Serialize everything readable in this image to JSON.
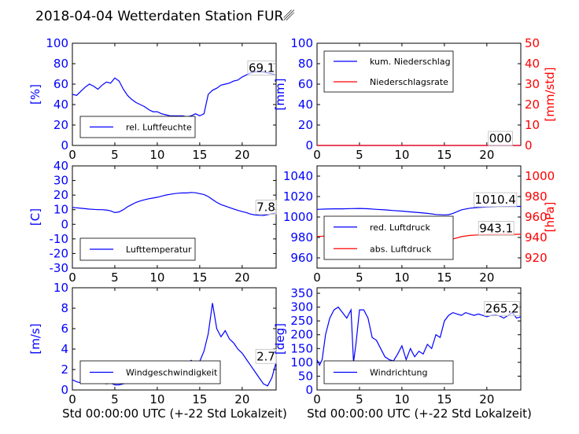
{
  "title": "2018-04-04 Wetterdaten Station FUR␥",
  "xlabel": "Std 00:00:00 UTC (+-22 Std Lokalzeit)",
  "colors": {
    "blue": "#0000ff",
    "red": "#ff0000",
    "axis": "#000000"
  },
  "chart_data": [
    {
      "id": "humidity",
      "type": "line",
      "ylabel": "[%]",
      "ylim": [
        0,
        100
      ],
      "yticks": [
        0,
        20,
        40,
        60,
        80,
        100
      ],
      "ytick_color": "#0000ff",
      "xlim": [
        0,
        24
      ],
      "xticks": [
        0,
        5,
        10,
        15,
        20
      ],
      "legend": {
        "placement": "lower-left",
        "entries": [
          {
            "name": "rel. Luftfeuchte",
            "color": "#0000ff"
          }
        ]
      },
      "annotation": {
        "text": "69.1",
        "x": 22.3,
        "y": 72
      },
      "series": [
        {
          "name": "rel. Luftfeuchte",
          "color": "#0000ff",
          "x": [
            0,
            0.5,
            1,
            1.5,
            2,
            2.5,
            3,
            3.5,
            4,
            4.5,
            5,
            5.5,
            6,
            6.5,
            7,
            7.5,
            8,
            8.5,
            9,
            9.5,
            10,
            10.5,
            11,
            11.5,
            12,
            12.5,
            13,
            13.5,
            14,
            14.5,
            15,
            15.5,
            16,
            16.5,
            17,
            17.5,
            18,
            18.5,
            19,
            19.5,
            20,
            20.5,
            21,
            21.5,
            22,
            22.5,
            23,
            23.5,
            24
          ],
          "y": [
            50,
            49,
            53,
            57,
            60,
            58,
            55,
            59,
            62,
            61,
            66,
            63,
            55,
            49,
            45,
            42,
            40,
            38,
            35,
            33,
            33,
            31,
            30,
            29,
            29,
            29,
            29,
            28,
            29,
            31,
            29,
            31,
            50,
            54,
            56,
            59,
            60,
            61,
            63,
            64,
            67,
            69,
            71,
            72,
            72,
            72,
            71,
            70,
            69
          ]
        }
      ]
    },
    {
      "id": "precip",
      "type": "line",
      "ylabel": "[mm]",
      "ylim": [
        0,
        100
      ],
      "yticks": [
        0,
        20,
        40,
        60,
        80,
        100
      ],
      "ytick_color": "#0000ff",
      "y2label": "[mm/std]",
      "y2lim": [
        0,
        50
      ],
      "y2ticks": [
        0,
        10,
        20,
        30,
        40,
        50
      ],
      "y2tick_color": "#ff0000",
      "xlim": [
        0,
        24
      ],
      "xticks": [
        0,
        5,
        10,
        15,
        20
      ],
      "legend": {
        "placement": "upper-left",
        "entries": [
          {
            "name": "kum. Niederschlag",
            "color": "#0000ff"
          },
          {
            "name": "Niederschlagsrate",
            "color": "#ff0000"
          }
        ]
      },
      "annotation": {
        "text": "000",
        "x": 21.6,
        "y": 3
      },
      "series": [
        {
          "name": "kum. Niederschlag",
          "color": "#0000ff",
          "axis": "left",
          "x": [
            0,
            24
          ],
          "y": [
            0,
            0
          ]
        },
        {
          "name": "Niederschlagsrate",
          "color": "#ff0000",
          "axis": "right",
          "x": [
            0,
            24
          ],
          "y": [
            0,
            0
          ]
        }
      ]
    },
    {
      "id": "temperature",
      "type": "line",
      "ylabel": "[C]",
      "ylim": [
        -30,
        40
      ],
      "yticks": [
        -30,
        -20,
        -10,
        0,
        10,
        20,
        30,
        40
      ],
      "ytick_color": "#0000ff",
      "xlim": [
        0,
        24
      ],
      "xticks": [
        0,
        5,
        10,
        15,
        20
      ],
      "legend": {
        "placement": "lower-left",
        "entries": [
          {
            "name": "Lufttemperatur",
            "color": "#0000ff"
          }
        ]
      },
      "annotation": {
        "text": "7.8",
        "x": 22.8,
        "y": 9
      },
      "series": [
        {
          "name": "Lufttemperatur",
          "color": "#0000ff",
          "x": [
            0,
            0.5,
            1,
            1.5,
            2,
            2.5,
            3,
            3.5,
            4,
            4.5,
            5,
            5.5,
            6,
            6.5,
            7,
            7.5,
            8,
            8.5,
            9,
            9.5,
            10,
            10.5,
            11,
            11.5,
            12,
            12.5,
            13,
            13.5,
            14,
            14.5,
            15,
            15.5,
            16,
            16.5,
            17,
            17.5,
            18,
            18.5,
            19,
            19.5,
            20,
            20.5,
            21,
            21.5,
            22,
            22.5,
            23,
            23.5,
            24
          ],
          "y": [
            11.5,
            11.3,
            11,
            10.7,
            10.4,
            10.2,
            10,
            10,
            9.8,
            9.2,
            8,
            8.5,
            10,
            12,
            13.5,
            15,
            16,
            16.8,
            17.5,
            18,
            18.5,
            19.2,
            20,
            20.5,
            21,
            21.3,
            21.5,
            21.5,
            21.8,
            21.6,
            21,
            20.4,
            19,
            17,
            15,
            13.5,
            12.5,
            11.5,
            10.5,
            9.5,
            8.7,
            8,
            7,
            6.4,
            6.2,
            6.1,
            6.6,
            7.2,
            7.8
          ]
        }
      ]
    },
    {
      "id": "pressure",
      "type": "line",
      "ylim": [
        950,
        1050
      ],
      "yticks": [
        960,
        980,
        1000,
        1020,
        1040
      ],
      "ytick_color": "#0000ff",
      "y2label": "[hPa]",
      "y2lim": [
        910,
        1010
      ],
      "y2ticks": [
        920,
        940,
        960,
        980,
        1000
      ],
      "y2tick_color": "#ff0000",
      "xlim": [
        0,
        24
      ],
      "xticks": [
        0,
        5,
        10,
        15,
        20
      ],
      "legend": {
        "placement": "lower-left",
        "entries": [
          {
            "name": "red. Luftdruck",
            "color": "#0000ff"
          },
          {
            "name": "abs. Luftdruck",
            "color": "#ff0000"
          }
        ]
      },
      "annotations": [
        {
          "text": "1010.4",
          "x": 21.0,
          "y": 1013,
          "axis": "left"
        },
        {
          "text": "943.1",
          "x": 21.1,
          "y": 945,
          "axis": "right"
        }
      ],
      "series": [
        {
          "name": "red. Luftdruck",
          "color": "#0000ff",
          "axis": "left",
          "x": [
            0,
            1,
            2,
            3,
            4,
            5,
            6,
            7,
            8,
            9,
            10,
            11,
            12,
            13,
            14,
            15,
            15.5,
            16,
            17,
            18,
            19,
            20,
            21,
            22,
            23,
            24
          ],
          "y": [
            1007.5,
            1007.8,
            1008,
            1008,
            1008.2,
            1008.4,
            1008.1,
            1007.5,
            1007,
            1006.3,
            1005.8,
            1005,
            1004.3,
            1003.5,
            1002.5,
            1002.1,
            1002.3,
            1003.5,
            1007,
            1008.6,
            1009.3,
            1009.8,
            1010,
            1010.2,
            1010.3,
            1010.4
          ]
        },
        {
          "name": "abs. Luftdruck",
          "color": "#ff0000",
          "axis": "right",
          "x": [
            0,
            1,
            2,
            3,
            4,
            5,
            6,
            7,
            8,
            9,
            10,
            11,
            12,
            13,
            14,
            15,
            15.5,
            16,
            17,
            18,
            19,
            20,
            21,
            22,
            23,
            24
          ],
          "y": [
            941,
            941.3,
            941.5,
            941.6,
            941.7,
            941.8,
            941.7,
            941.4,
            941,
            940.5,
            940,
            939.4,
            938.6,
            937.8,
            937,
            936.8,
            937.2,
            938.5,
            940.8,
            942,
            942.5,
            942.8,
            943,
            943.1,
            943,
            943.1
          ]
        }
      ]
    },
    {
      "id": "windspeed",
      "type": "line",
      "ylabel": "[m/s]",
      "ylim": [
        0,
        10
      ],
      "yticks": [
        0,
        2,
        4,
        6,
        8,
        10
      ],
      "ytick_color": "#0000ff",
      "xlim": [
        0,
        24
      ],
      "xticks": [
        0,
        5,
        10,
        15,
        20
      ],
      "legend": {
        "placement": "lower-left",
        "entries": [
          {
            "name": "Windgeschwindigkeit",
            "color": "#0000ff"
          }
        ]
      },
      "annotation": {
        "text": "2.7",
        "x": 22.8,
        "y": 2.9
      },
      "series": [
        {
          "name": "Windgeschwindigkeit",
          "color": "#0000ff",
          "x": [
            0,
            0.5,
            1,
            1.5,
            2,
            2.5,
            3,
            3.5,
            4,
            4.5,
            5,
            5.5,
            6,
            6.5,
            7,
            7.5,
            8,
            8.5,
            9,
            9.5,
            10,
            10.5,
            11,
            11.5,
            12,
            12.5,
            13,
            13.5,
            14,
            14.5,
            15,
            15.5,
            16,
            16.5,
            17,
            17.5,
            18,
            18.5,
            19,
            19.5,
            20,
            20.5,
            21,
            21.5,
            22,
            22.5,
            23,
            23.5,
            24
          ],
          "y": [
            1.0,
            0.8,
            0.7,
            0.9,
            1.4,
            1.2,
            1.5,
            0.8,
            0.6,
            0.7,
            0.5,
            0.5,
            0.6,
            0.7,
            0.9,
            0.8,
            1.2,
            1.5,
            1.3,
            1.8,
            1.6,
            1.9,
            2.0,
            2.4,
            2.3,
            2.5,
            2.4,
            2.6,
            2.9,
            2.5,
            2.8,
            3.8,
            5.5,
            8.5,
            6.0,
            5.2,
            5.8,
            5.0,
            4.6,
            4.0,
            3.6,
            3.0,
            2.4,
            1.8,
            1.2,
            0.6,
            0.4,
            1.2,
            2.7
          ]
        }
      ]
    },
    {
      "id": "winddir",
      "type": "line",
      "ylabel": "[deg]",
      "ylim": [
        0,
        370
      ],
      "yticks": [
        0,
        50,
        100,
        150,
        200,
        250,
        300,
        350
      ],
      "ytick_color": "#0000ff",
      "xlim": [
        0,
        24
      ],
      "xticks": [
        0,
        5,
        10,
        15,
        20
      ],
      "legend": {
        "placement": "lower-left",
        "entries": [
          {
            "name": "Windrichtung",
            "color": "#0000ff"
          }
        ]
      },
      "annotation": {
        "text": "265.2",
        "x": 21.8,
        "y": 280
      },
      "series": [
        {
          "name": "Windrichtung",
          "color": "#0000ff",
          "x": [
            0,
            0.3,
            0.6,
            1,
            1.5,
            2,
            2.5,
            3,
            3.5,
            4,
            4.3,
            4.6,
            5,
            5.5,
            6,
            6.5,
            7,
            7.5,
            8,
            8.5,
            9,
            9.5,
            10,
            10.5,
            11,
            11.5,
            12,
            12.5,
            13,
            13.5,
            14,
            14.5,
            15,
            15.5,
            16,
            16.5,
            17,
            17.5,
            18,
            18.5,
            19,
            19.5,
            20,
            20.5,
            21,
            21.5,
            22,
            22.5,
            23,
            23.5,
            24
          ],
          "y": [
            110,
            90,
            110,
            200,
            260,
            290,
            300,
            280,
            260,
            290,
            100,
            170,
            290,
            290,
            260,
            190,
            180,
            150,
            120,
            110,
            105,
            130,
            160,
            110,
            150,
            120,
            140,
            130,
            165,
            150,
            200,
            190,
            250,
            270,
            280,
            275,
            270,
            280,
            275,
            270,
            275,
            270,
            265,
            270,
            272,
            268,
            260,
            270,
            280,
            260,
            265
          ]
        }
      ]
    }
  ]
}
